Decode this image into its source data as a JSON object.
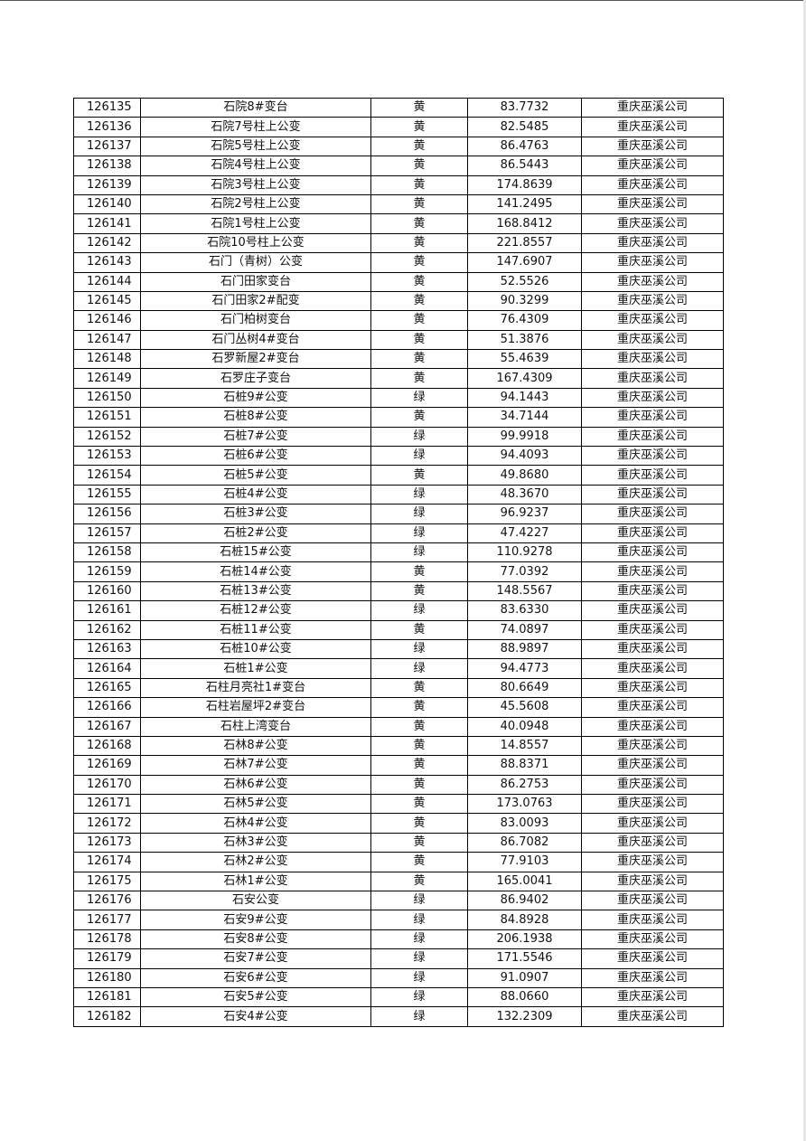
{
  "table": {
    "rows": [
      [
        "126135",
        "石院8#变台",
        "黄",
        "83.7732",
        "重庆巫溪公司"
      ],
      [
        "126136",
        "石院7号柱上公变",
        "黄",
        "82.5485",
        "重庆巫溪公司"
      ],
      [
        "126137",
        "石院5号柱上公变",
        "黄",
        "86.4763",
        "重庆巫溪公司"
      ],
      [
        "126138",
        "石院4号柱上公变",
        "黄",
        "86.5443",
        "重庆巫溪公司"
      ],
      [
        "126139",
        "石院3号柱上公变",
        "黄",
        "174.8639",
        "重庆巫溪公司"
      ],
      [
        "126140",
        "石院2号柱上公变",
        "黄",
        "141.2495",
        "重庆巫溪公司"
      ],
      [
        "126141",
        "石院1号柱上公变",
        "黄",
        "168.8412",
        "重庆巫溪公司"
      ],
      [
        "126142",
        "石院10号柱上公变",
        "黄",
        "221.8557",
        "重庆巫溪公司"
      ],
      [
        "126143",
        "石门（青树）公变",
        "黄",
        "147.6907",
        "重庆巫溪公司"
      ],
      [
        "126144",
        "石门田家变台",
        "黄",
        "52.5526",
        "重庆巫溪公司"
      ],
      [
        "126145",
        "石门田家2#配变",
        "黄",
        "90.3299",
        "重庆巫溪公司"
      ],
      [
        "126146",
        "石门柏树变台",
        "黄",
        "76.4309",
        "重庆巫溪公司"
      ],
      [
        "126147",
        "石门丛树4#变台",
        "黄",
        "51.3876",
        "重庆巫溪公司"
      ],
      [
        "126148",
        "石罗新屋2#变台",
        "黄",
        "55.4639",
        "重庆巫溪公司"
      ],
      [
        "126149",
        "石罗庄子变台",
        "黄",
        "167.4309",
        "重庆巫溪公司"
      ],
      [
        "126150",
        "石桩9#公变",
        "绿",
        "94.1443",
        "重庆巫溪公司"
      ],
      [
        "126151",
        "石桩8#公变",
        "黄",
        "34.7144",
        "重庆巫溪公司"
      ],
      [
        "126152",
        "石桩7#公变",
        "绿",
        "99.9918",
        "重庆巫溪公司"
      ],
      [
        "126153",
        "石桩6#公变",
        "绿",
        "94.4093",
        "重庆巫溪公司"
      ],
      [
        "126154",
        "石桩5#公变",
        "黄",
        "49.8680",
        "重庆巫溪公司"
      ],
      [
        "126155",
        "石桩4#公变",
        "绿",
        "48.3670",
        "重庆巫溪公司"
      ],
      [
        "126156",
        "石桩3#公变",
        "绿",
        "96.9237",
        "重庆巫溪公司"
      ],
      [
        "126157",
        "石桩2#公变",
        "绿",
        "47.4227",
        "重庆巫溪公司"
      ],
      [
        "126158",
        "石桩15#公变",
        "绿",
        "110.9278",
        "重庆巫溪公司"
      ],
      [
        "126159",
        "石桩14#公变",
        "黄",
        "77.0392",
        "重庆巫溪公司"
      ],
      [
        "126160",
        "石桩13#公变",
        "黄",
        "148.5567",
        "重庆巫溪公司"
      ],
      [
        "126161",
        "石桩12#公变",
        "绿",
        "83.6330",
        "重庆巫溪公司"
      ],
      [
        "126162",
        "石桩11#公变",
        "黄",
        "74.0897",
        "重庆巫溪公司"
      ],
      [
        "126163",
        "石桩10#公变",
        "绿",
        "88.9897",
        "重庆巫溪公司"
      ],
      [
        "126164",
        "石桩1#公变",
        "绿",
        "94.4773",
        "重庆巫溪公司"
      ],
      [
        "126165",
        "石柱月亮社1#变台",
        "黄",
        "80.6649",
        "重庆巫溪公司"
      ],
      [
        "126166",
        "石柱岩屋坪2#变台",
        "黄",
        "45.5608",
        "重庆巫溪公司"
      ],
      [
        "126167",
        "石柱上湾变台",
        "黄",
        "40.0948",
        "重庆巫溪公司"
      ],
      [
        "126168",
        "石林8#公变",
        "黄",
        "14.8557",
        "重庆巫溪公司"
      ],
      [
        "126169",
        "石林7#公变",
        "黄",
        "88.8371",
        "重庆巫溪公司"
      ],
      [
        "126170",
        "石林6#公变",
        "黄",
        "86.2753",
        "重庆巫溪公司"
      ],
      [
        "126171",
        "石林5#公变",
        "黄",
        "173.0763",
        "重庆巫溪公司"
      ],
      [
        "126172",
        "石林4#公变",
        "黄",
        "83.0093",
        "重庆巫溪公司"
      ],
      [
        "126173",
        "石林3#公变",
        "黄",
        "86.7082",
        "重庆巫溪公司"
      ],
      [
        "126174",
        "石林2#公变",
        "黄",
        "77.9103",
        "重庆巫溪公司"
      ],
      [
        "126175",
        "石林1#公变",
        "黄",
        "165.0041",
        "重庆巫溪公司"
      ],
      [
        "126176",
        "石安公变",
        "绿",
        "86.9402",
        "重庆巫溪公司"
      ],
      [
        "126177",
        "石安9#公变",
        "绿",
        "84.8928",
        "重庆巫溪公司"
      ],
      [
        "126178",
        "石安8#公变",
        "绿",
        "206.1938",
        "重庆巫溪公司"
      ],
      [
        "126179",
        "石安7#公变",
        "绿",
        "171.5546",
        "重庆巫溪公司"
      ],
      [
        "126180",
        "石安6#公变",
        "绿",
        "91.0907",
        "重庆巫溪公司"
      ],
      [
        "126181",
        "石安5#公变",
        "绿",
        "88.0660",
        "重庆巫溪公司"
      ],
      [
        "126182",
        "石安4#公变",
        "绿",
        "132.2309",
        "重庆巫溪公司"
      ]
    ]
  }
}
